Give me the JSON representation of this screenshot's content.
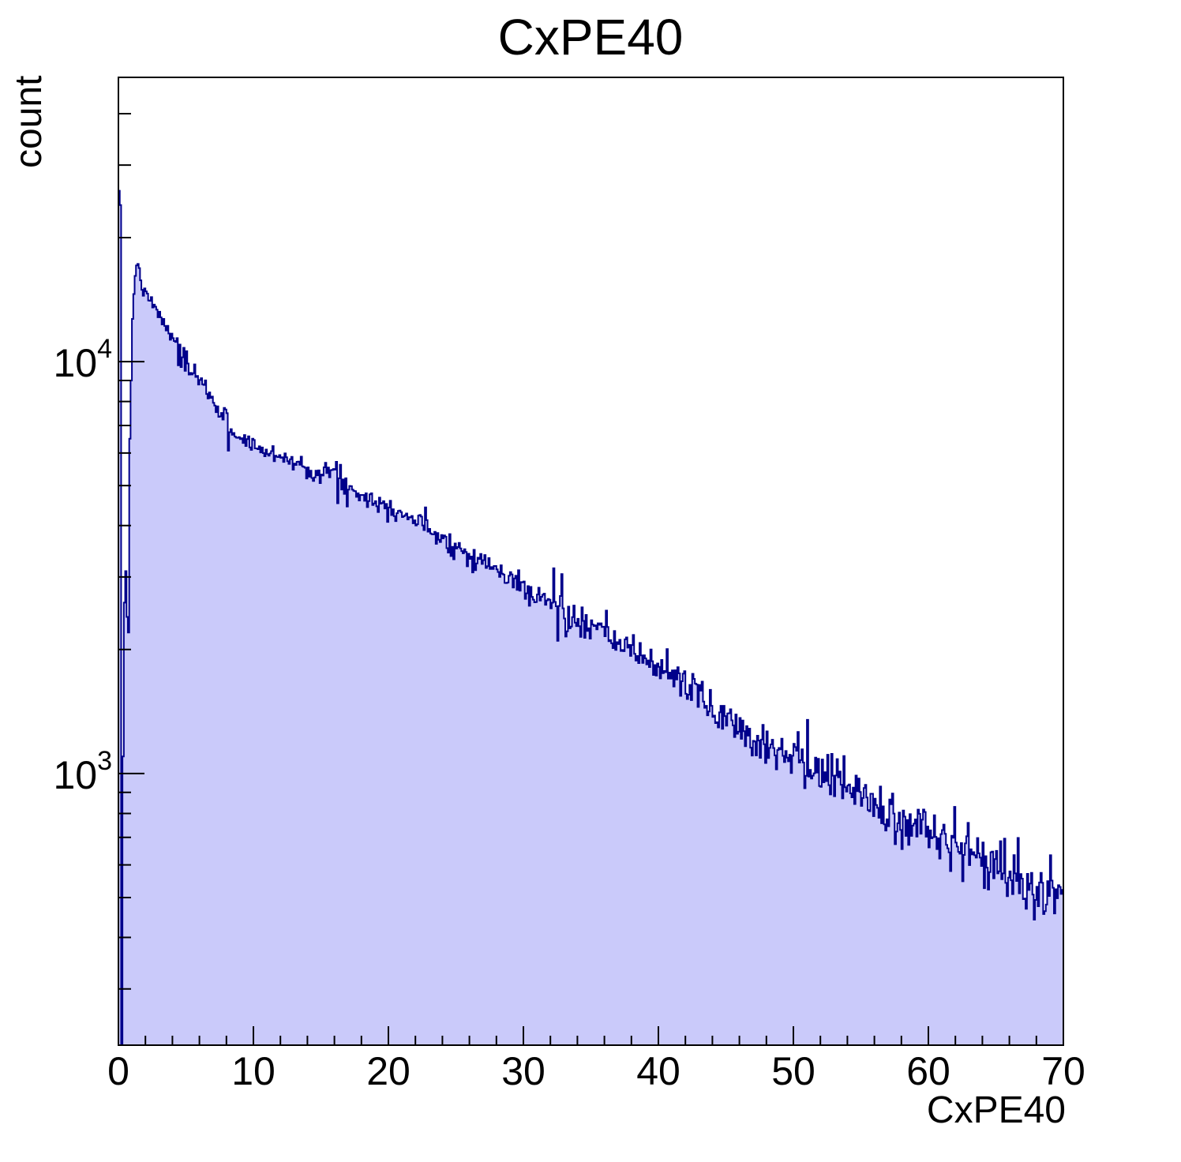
{
  "chart": {
    "title": "CxPE40",
    "xlabel": "CxPE40",
    "ylabel": "count",
    "fill_color": "#cacafa",
    "line_color": "#00008b",
    "frame_color": "#000000",
    "text_color": "#000000"
  },
  "chart_data": {
    "type": "bar",
    "subtype": "histogram",
    "title": "CxPE40",
    "xlabel": "CxPE40",
    "ylabel": "count",
    "grid": false,
    "legend": false,
    "y_scale": "log",
    "x_range": [
      0,
      70
    ],
    "y_range": [
      219,
      49000
    ],
    "bin_width": 0.1,
    "n_bins": 700,
    "x_ticks": [
      0,
      10,
      20,
      30,
      40,
      50,
      60,
      70
    ],
    "x_minor_step": 2,
    "y_major_ticks": [
      1000,
      10000
    ],
    "y_tick_base": "10",
    "head_bins": [
      26000,
      24000,
      60,
      1100,
      2600,
      3100,
      2400,
      2200,
      6500,
      9000
    ],
    "envelope": [
      [
        1.0,
        10800
      ],
      [
        1.1,
        13500
      ],
      [
        1.2,
        15800
      ],
      [
        1.3,
        17000
      ],
      [
        1.45,
        17300
      ],
      [
        1.6,
        16300
      ],
      [
        1.8,
        14900
      ],
      [
        2.0,
        14600
      ],
      [
        2.5,
        13800
      ],
      [
        3.0,
        13000
      ],
      [
        3.5,
        12200
      ],
      [
        4.0,
        11300
      ],
      [
        4.5,
        10700
      ],
      [
        5.0,
        9900
      ],
      [
        5.5,
        9400
      ],
      [
        6.0,
        8900
      ],
      [
        6.5,
        8600
      ],
      [
        7.0,
        8000
      ],
      [
        7.5,
        7600
      ],
      [
        8.0,
        7300
      ],
      [
        8.4,
        6820
      ],
      [
        9.0,
        6500
      ],
      [
        10,
        6300
      ],
      [
        11,
        5980
      ],
      [
        12,
        5950
      ],
      [
        13,
        5690
      ],
      [
        14,
        5520
      ],
      [
        15,
        5330
      ],
      [
        16,
        5420
      ],
      [
        17,
        4950
      ],
      [
        17.5,
        4900
      ],
      [
        18,
        4800
      ],
      [
        19,
        4560
      ],
      [
        20,
        4480
      ],
      [
        21,
        4300
      ],
      [
        22,
        4120
      ],
      [
        23,
        3950
      ],
      [
        24,
        3750
      ],
      [
        25,
        3550
      ],
      [
        26,
        3400
      ],
      [
        27,
        3270
      ],
      [
        28,
        3120
      ],
      [
        29,
        2960
      ],
      [
        30,
        2840
      ],
      [
        31,
        2680
      ],
      [
        32,
        2600
      ],
      [
        33,
        2450
      ],
      [
        34,
        2320
      ],
      [
        35,
        2250
      ],
      [
        36,
        2180
      ],
      [
        37,
        2080
      ],
      [
        38,
        1980
      ],
      [
        39,
        1900
      ],
      [
        40,
        1820
      ],
      [
        41,
        1750
      ],
      [
        42,
        1650
      ],
      [
        43,
        1550
      ],
      [
        44,
        1420
      ],
      [
        45,
        1370
      ],
      [
        46,
        1300
      ],
      [
        47,
        1220
      ],
      [
        48,
        1180
      ],
      [
        49,
        1150
      ],
      [
        50,
        1120
      ],
      [
        51,
        1030
      ],
      [
        52,
        1000
      ],
      [
        53,
        960
      ],
      [
        54,
        930
      ],
      [
        55,
        900
      ],
      [
        56,
        830
      ],
      [
        57,
        795
      ],
      [
        58,
        770
      ],
      [
        59,
        730
      ],
      [
        60,
        740
      ],
      [
        61,
        700
      ],
      [
        62,
        670
      ],
      [
        63,
        640
      ],
      [
        64,
        615
      ],
      [
        65,
        590
      ],
      [
        66,
        555
      ],
      [
        67,
        540
      ],
      [
        68,
        520
      ],
      [
        69,
        505
      ],
      [
        70,
        470
      ]
    ],
    "special_bins": [
      [
        4.35,
        11400
      ],
      [
        4.45,
        9800
      ],
      [
        4.55,
        11000
      ],
      [
        4.65,
        9700
      ],
      [
        4.85,
        10800
      ],
      [
        4.95,
        9500
      ],
      [
        5.05,
        10600
      ],
      [
        5.25,
        9300
      ],
      [
        8.15,
        6080
      ],
      [
        14.95,
        5070
      ],
      [
        16.25,
        4530
      ],
      [
        16.45,
        5620
      ],
      [
        16.95,
        4450
      ],
      [
        20.55,
        4100
      ],
      [
        29.75,
        2780
      ],
      [
        32.25,
        3150
      ],
      [
        32.55,
        2100
      ],
      [
        32.85,
        3050
      ],
      [
        33.15,
        2150
      ],
      [
        50.65,
        1145
      ],
      [
        51.05,
        1350
      ],
      [
        53.65,
        870
      ],
      [
        64.05,
        680
      ],
      [
        65.35,
        685
      ]
    ],
    "noise_seed": 7,
    "noise_coeff": 2.0
  }
}
